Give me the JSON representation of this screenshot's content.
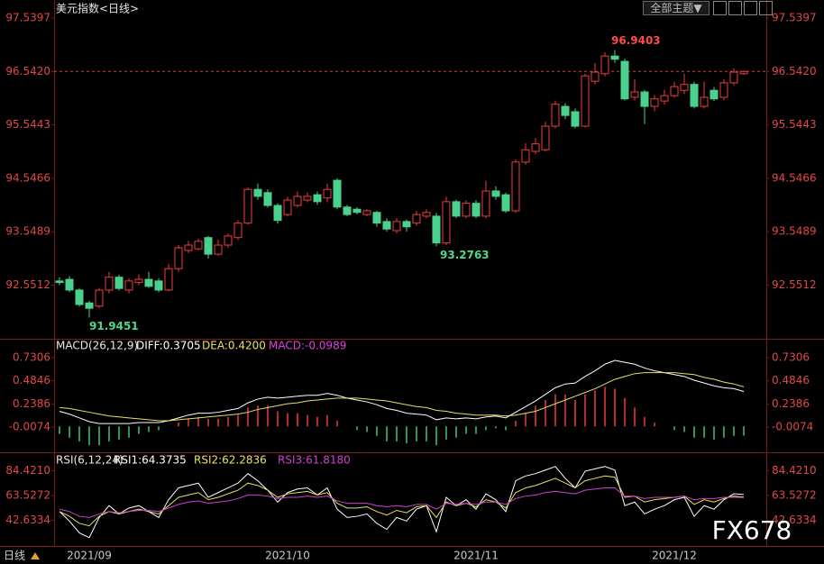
{
  "header": {
    "menu": "全部主题▼"
  },
  "footer": {
    "tab": "日线"
  },
  "watermark": "FX678",
  "chart_data": [
    {
      "type": "candlestick",
      "title": "美元指数<日线>",
      "categories": [
        null,
        null,
        null,
        "2021/09",
        null,
        null,
        null,
        null,
        null,
        null,
        null,
        null,
        null,
        null,
        null,
        null,
        null,
        null,
        null,
        null,
        null,
        null,
        null,
        "2021/10",
        null,
        null,
        null,
        null,
        null,
        null,
        null,
        null,
        null,
        null,
        null,
        null,
        null,
        null,
        null,
        null,
        null,
        null,
        "2021/11",
        null,
        null,
        null,
        null,
        null,
        null,
        null,
        null,
        null,
        null,
        null,
        null,
        null,
        null,
        null,
        null,
        null,
        null,
        null,
        "2021/12",
        null,
        null,
        null,
        null,
        null,
        null,
        null
      ],
      "open": [
        92.63,
        92.66,
        92.46,
        92.22,
        92.16,
        92.46,
        92.7,
        92.46,
        92.6,
        92.66,
        92.63,
        92.46,
        92.86,
        93.2,
        93.23,
        93.44,
        93.13,
        93.3,
        93.44,
        93.71,
        94.34,
        94.28,
        94.04,
        93.87,
        94.04,
        94.14,
        94.24,
        94.18,
        94.51,
        94.01,
        93.97,
        93.87,
        93.91,
        93.74,
        93.57,
        93.74,
        93.71,
        93.84,
        93.84,
        93.34,
        94.11,
        93.84,
        94.08,
        93.84,
        94.31,
        94.24,
        93.94,
        94.85,
        95.05,
        95.08,
        95.52,
        95.89,
        95.79,
        95.52,
        96.36,
        96.5,
        96.83,
        96.73,
        96.06,
        96.16,
        95.89,
        95.99,
        96.09,
        96.19,
        96.3,
        95.89,
        96.19,
        96.06,
        96.33,
        96.5
      ],
      "high": [
        92.7,
        92.72,
        92.5,
        92.26,
        92.5,
        92.8,
        92.75,
        92.68,
        92.75,
        92.8,
        92.68,
        92.95,
        93.3,
        93.38,
        93.42,
        93.47,
        93.4,
        93.52,
        93.76,
        94.38,
        94.45,
        94.34,
        94.08,
        94.2,
        94.3,
        94.28,
        94.3,
        94.45,
        94.55,
        94.05,
        94.01,
        93.97,
        93.94,
        93.8,
        93.8,
        93.78,
        93.94,
        93.97,
        93.9,
        94.2,
        94.15,
        94.14,
        94.14,
        94.5,
        94.4,
        94.28,
        94.9,
        95.2,
        95.3,
        95.6,
        96.0,
        95.95,
        95.85,
        96.5,
        96.7,
        96.9,
        96.9403,
        96.78,
        96.4,
        96.2,
        96.1,
        96.2,
        96.35,
        96.5,
        96.35,
        96.35,
        96.25,
        96.4,
        96.6,
        96.56
      ],
      "low": [
        92.55,
        92.42,
        92.15,
        91.9451,
        92.12,
        92.4,
        92.45,
        92.4,
        92.55,
        92.5,
        92.42,
        92.44,
        92.8,
        93.15,
        93.2,
        93.05,
        93.1,
        93.25,
        93.4,
        93.68,
        94.15,
        94.0,
        93.7,
        93.84,
        94.0,
        94.1,
        94.05,
        94.1,
        93.97,
        93.84,
        93.87,
        93.84,
        93.64,
        93.55,
        93.52,
        93.55,
        93.66,
        93.8,
        93.2763,
        93.3,
        93.8,
        93.8,
        93.8,
        93.8,
        94.15,
        93.9,
        93.9,
        94.8,
        95.0,
        95.05,
        95.48,
        95.65,
        95.48,
        95.5,
        96.3,
        96.45,
        96.7,
        96.0,
        96.0,
        95.56,
        95.8,
        95.92,
        96.05,
        96.12,
        95.85,
        95.85,
        95.99,
        96.0,
        96.28,
        96.48
      ],
      "close": [
        92.6,
        92.46,
        92.19,
        92.12,
        92.46,
        92.7,
        92.49,
        92.63,
        92.66,
        92.53,
        92.46,
        92.86,
        93.25,
        93.3,
        93.37,
        93.13,
        93.3,
        93.47,
        93.71,
        94.34,
        94.21,
        94.04,
        93.76,
        94.14,
        94.21,
        94.21,
        94.11,
        94.34,
        94.01,
        93.87,
        93.91,
        93.94,
        93.71,
        93.6,
        93.74,
        93.64,
        93.87,
        93.91,
        93.34,
        94.11,
        93.84,
        94.08,
        93.84,
        94.31,
        94.21,
        93.94,
        94.85,
        95.08,
        95.19,
        95.52,
        95.93,
        95.72,
        95.52,
        96.46,
        96.53,
        96.83,
        96.77,
        96.03,
        96.16,
        95.89,
        96.03,
        96.09,
        96.26,
        96.3,
        95.89,
        96.06,
        96.03,
        96.33,
        96.53,
        96.542
      ],
      "up_color": "#f03c3c",
      "down_color": "#4bd18e",
      "ylim": [
        91.618,
        97.792
      ],
      "yticks": [
        97.5397,
        {
          "value": 96.542,
          "label": "96.5420"
        },
        95.5443,
        94.5466,
        93.5489,
        92.5512
      ]
    },
    {
      "type": "macd",
      "title": "MACD(26,12,9)",
      "series": [
        {
          "name": "DIFF:0.3705",
          "color": "#ffffff",
          "values": [
            0.16,
            0.13,
            0.09,
            0.05,
            0.03,
            0.03,
            0.03,
            0.03,
            0.04,
            0.04,
            0.04,
            0.06,
            0.09,
            0.12,
            0.14,
            0.14,
            0.15,
            0.17,
            0.19,
            0.25,
            0.29,
            0.31,
            0.3,
            0.31,
            0.32,
            0.33,
            0.33,
            0.35,
            0.33,
            0.3,
            0.28,
            0.26,
            0.23,
            0.19,
            0.17,
            0.14,
            0.13,
            0.12,
            0.07,
            0.09,
            0.08,
            0.09,
            0.08,
            0.1,
            0.11,
            0.09,
            0.15,
            0.21,
            0.27,
            0.34,
            0.41,
            0.45,
            0.46,
            0.53,
            0.59,
            0.66,
            0.7,
            0.68,
            0.66,
            0.62,
            0.59,
            0.57,
            0.55,
            0.53,
            0.49,
            0.46,
            0.43,
            0.41,
            0.4,
            0.3705
          ]
        },
        {
          "name": "DEA:0.4200",
          "color": "#e8e060",
          "values": [
            0.2,
            0.19,
            0.17,
            0.15,
            0.13,
            0.11,
            0.1,
            0.09,
            0.08,
            0.07,
            0.06,
            0.06,
            0.07,
            0.08,
            0.09,
            0.1,
            0.11,
            0.12,
            0.13,
            0.15,
            0.18,
            0.2,
            0.22,
            0.24,
            0.25,
            0.27,
            0.28,
            0.29,
            0.3,
            0.3,
            0.3,
            0.29,
            0.28,
            0.27,
            0.25,
            0.23,
            0.21,
            0.2,
            0.17,
            0.16,
            0.14,
            0.13,
            0.12,
            0.12,
            0.12,
            0.11,
            0.12,
            0.14,
            0.16,
            0.2,
            0.24,
            0.28,
            0.32,
            0.36,
            0.4,
            0.45,
            0.5,
            0.53,
            0.56,
            0.57,
            0.57,
            0.57,
            0.57,
            0.56,
            0.55,
            0.52,
            0.5,
            0.47,
            0.45,
            0.42
          ]
        },
        {
          "name": "MACD:-0.0989",
          "color": "#e040e0",
          "up_color": "#f03c3c",
          "down_color": "#3cc878",
          "values": [
            -0.08,
            -0.12,
            -0.16,
            -0.2,
            -0.2,
            -0.16,
            -0.14,
            -0.12,
            -0.08,
            -0.06,
            -0.04,
            0,
            0.04,
            0.08,
            0.1,
            0.08,
            0.08,
            0.1,
            0.12,
            0.2,
            0.22,
            0.22,
            0.16,
            0.14,
            0.14,
            0.12,
            0.1,
            0.12,
            0.06,
            0,
            -0.04,
            -0.06,
            -0.1,
            -0.16,
            -0.16,
            -0.18,
            -0.16,
            -0.16,
            -0.2,
            -0.14,
            -0.12,
            -0.08,
            -0.08,
            -0.04,
            -0.02,
            -0.04,
            0.06,
            0.14,
            0.22,
            0.28,
            0.34,
            0.34,
            0.28,
            0.34,
            0.38,
            0.42,
            0.4,
            0.3,
            0.2,
            0.1,
            0.04,
            0,
            -0.04,
            -0.06,
            -0.12,
            -0.12,
            -0.14,
            -0.12,
            -0.1,
            -0.0989
          ]
        }
      ],
      "ylim": [
        -0.256,
        0.892
      ],
      "yticks": [
        0.7306,
        0.4846,
        0.2386,
        -0.0074
      ]
    },
    {
      "type": "line",
      "title": "RSI(6,12,24)",
      "series": [
        {
          "name": "RSI1:64.3735",
          "color": "#ffffff",
          "values": [
            50,
            42,
            32,
            28,
            45,
            55,
            48,
            53,
            55,
            50,
            45,
            60,
            70,
            72,
            74,
            62,
            66,
            70,
            74,
            82,
            76,
            68,
            58,
            66,
            69,
            70,
            64,
            70,
            52,
            45,
            46,
            48,
            40,
            35,
            45,
            42,
            52,
            55,
            33,
            62,
            55,
            60,
            52,
            65,
            60,
            50,
            76,
            80,
            82,
            85,
            88,
            78,
            70,
            84,
            86,
            88,
            85,
            55,
            58,
            48,
            52,
            55,
            60,
            62,
            46,
            55,
            52,
            60,
            65,
            64.3735
          ]
        },
        {
          "name": "RSI2:62.2836",
          "color": "#e8e060",
          "values": [
            50,
            46,
            40,
            38,
            46,
            50,
            48,
            50,
            52,
            50,
            48,
            55,
            62,
            64,
            66,
            60,
            62,
            65,
            68,
            74,
            72,
            68,
            62,
            65,
            66,
            67,
            64,
            66,
            57,
            53,
            53,
            54,
            50,
            47,
            51,
            49,
            54,
            55,
            45,
            58,
            55,
            57,
            54,
            60,
            58,
            53,
            66,
            70,
            72,
            75,
            78,
            74,
            70,
            76,
            78,
            80,
            79,
            62,
            63,
            58,
            60,
            61,
            62,
            63,
            56,
            60,
            58,
            61,
            63,
            62.2836
          ]
        },
        {
          "name": "RSI3:61.8180",
          "color": "#d040d0",
          "values": [
            52,
            50,
            46,
            45,
            48,
            50,
            49,
            50,
            51,
            51,
            50,
            53,
            56,
            58,
            59,
            57,
            58,
            59,
            61,
            64,
            64,
            63,
            61,
            62,
            62,
            63,
            62,
            63,
            59,
            57,
            57,
            57,
            55,
            54,
            55,
            54,
            56,
            56,
            52,
            57,
            56,
            57,
            56,
            58,
            58,
            56,
            61,
            63,
            64,
            66,
            67,
            66,
            65,
            68,
            69,
            70,
            70,
            63,
            63,
            61,
            62,
            62,
            62,
            63,
            60,
            61,
            61,
            62,
            62,
            61.818
          ]
        }
      ],
      "ylim": [
        22.49,
        96.96
      ],
      "yticks": [
        {
          "value": 84.421,
          "label": "84.4210"
        },
        63.5272,
        42.6334
      ]
    }
  ]
}
